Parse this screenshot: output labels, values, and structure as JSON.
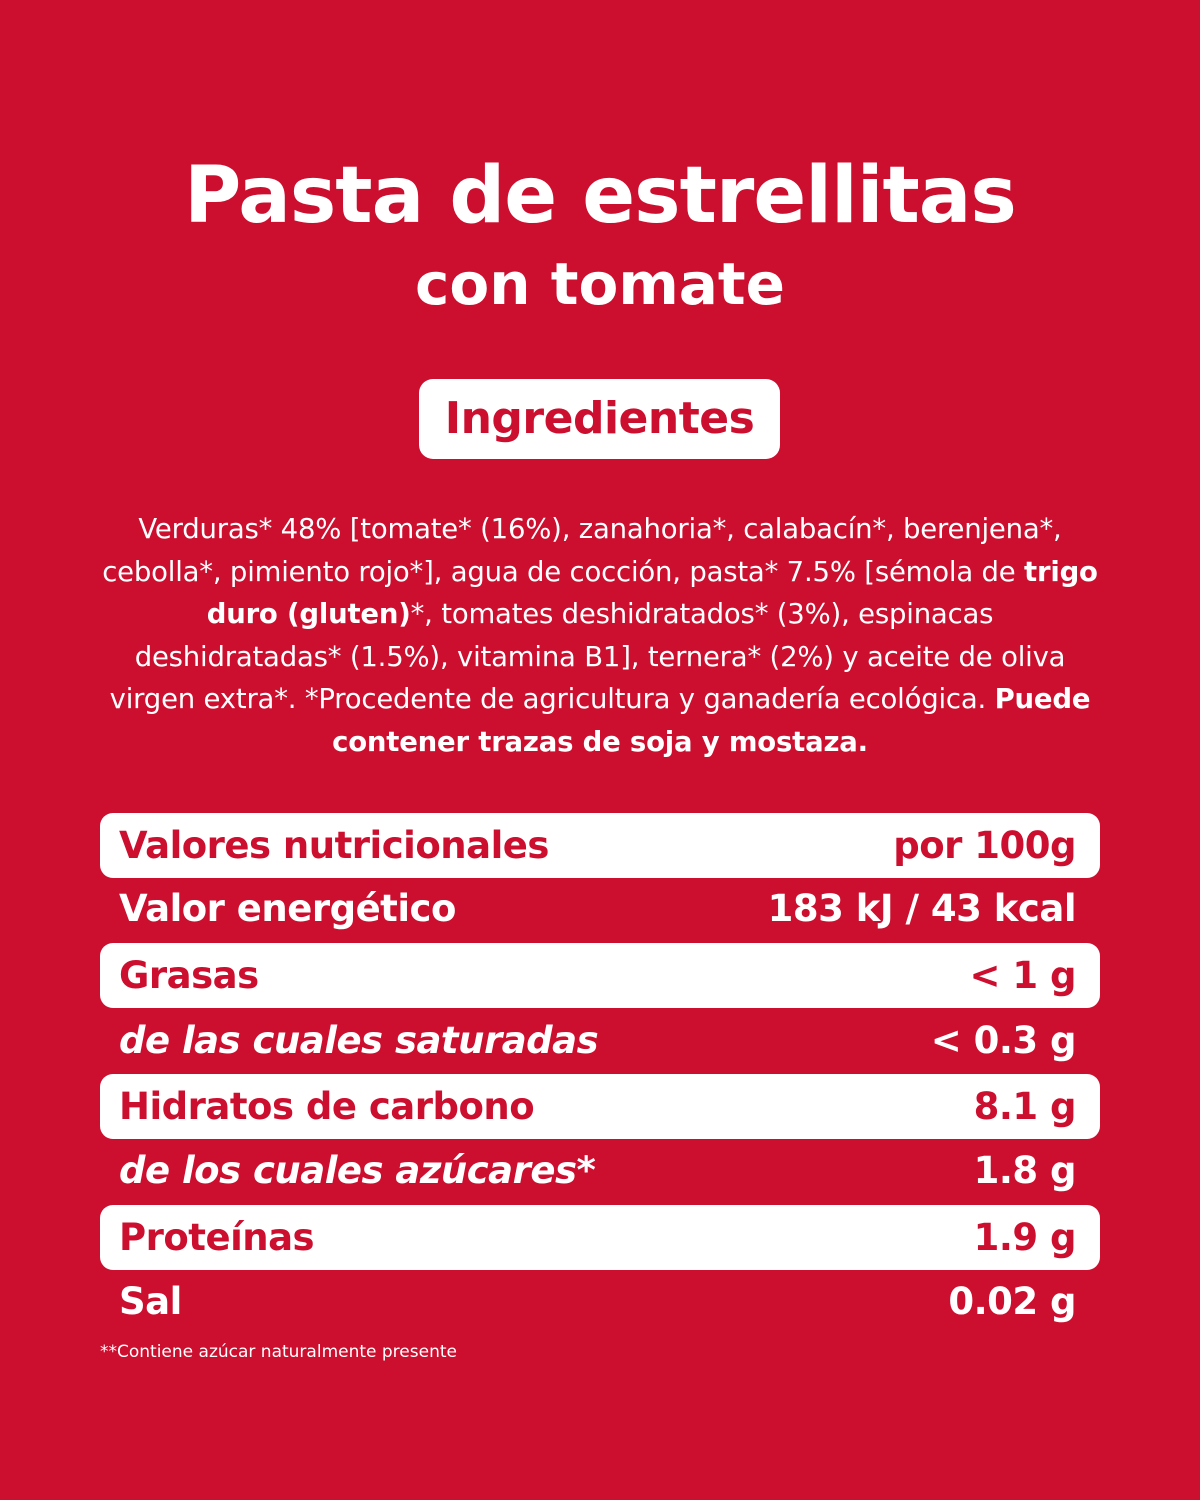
{
  "header": {
    "title": "Pasta de estrellitas",
    "subtitle": "con tomate"
  },
  "ingredients": {
    "heading": "Ingredientes",
    "segments": [
      {
        "text": "Verduras* 48% [tomate* (16%), zanahoria*, calabacín*, berenjena*, cebolla*, pimiento rojo*], agua de cocción, pasta* 7.5% [sémola de ",
        "bold": false
      },
      {
        "text": "trigo duro (gluten)",
        "bold": true
      },
      {
        "text": "*, tomates deshidratados* (3%), espinacas deshidratadas* (1.5%), vitamina B1], ternera* (2%) y aceite de oliva virgen extra*. *Procedente de agricultura y ganadería ecológica. ",
        "bold": false
      },
      {
        "text": "Puede contener trazas de soja y mostaza.",
        "bold": true
      }
    ]
  },
  "nutrition": {
    "rows": [
      {
        "label": "Valores nutricionales",
        "value": "por 100g",
        "filled": true,
        "italic": false
      },
      {
        "label": "Valor energético",
        "value": "183 kJ / 43 kcal",
        "filled": false,
        "italic": false
      },
      {
        "label": "Grasas",
        "value": "< 1 g",
        "filled": true,
        "italic": false
      },
      {
        "label": "de las cuales saturadas",
        "value": "< 0.3 g",
        "filled": false,
        "italic": true
      },
      {
        "label": "Hidratos de carbono",
        "value": "8.1 g",
        "filled": true,
        "italic": false
      },
      {
        "label": "de los cuales azúcares*",
        "value": "1.8 g",
        "filled": false,
        "italic": true
      },
      {
        "label": "Proteínas",
        "value": "1.9 g",
        "filled": true,
        "italic": false
      },
      {
        "label": "Sal",
        "value": "0.02 g",
        "filled": false,
        "italic": false
      }
    ]
  },
  "footnote": "**Contiene azúcar naturalmente presente",
  "colors": {
    "background": "#cc0e2f",
    "text": "#ffffff"
  }
}
